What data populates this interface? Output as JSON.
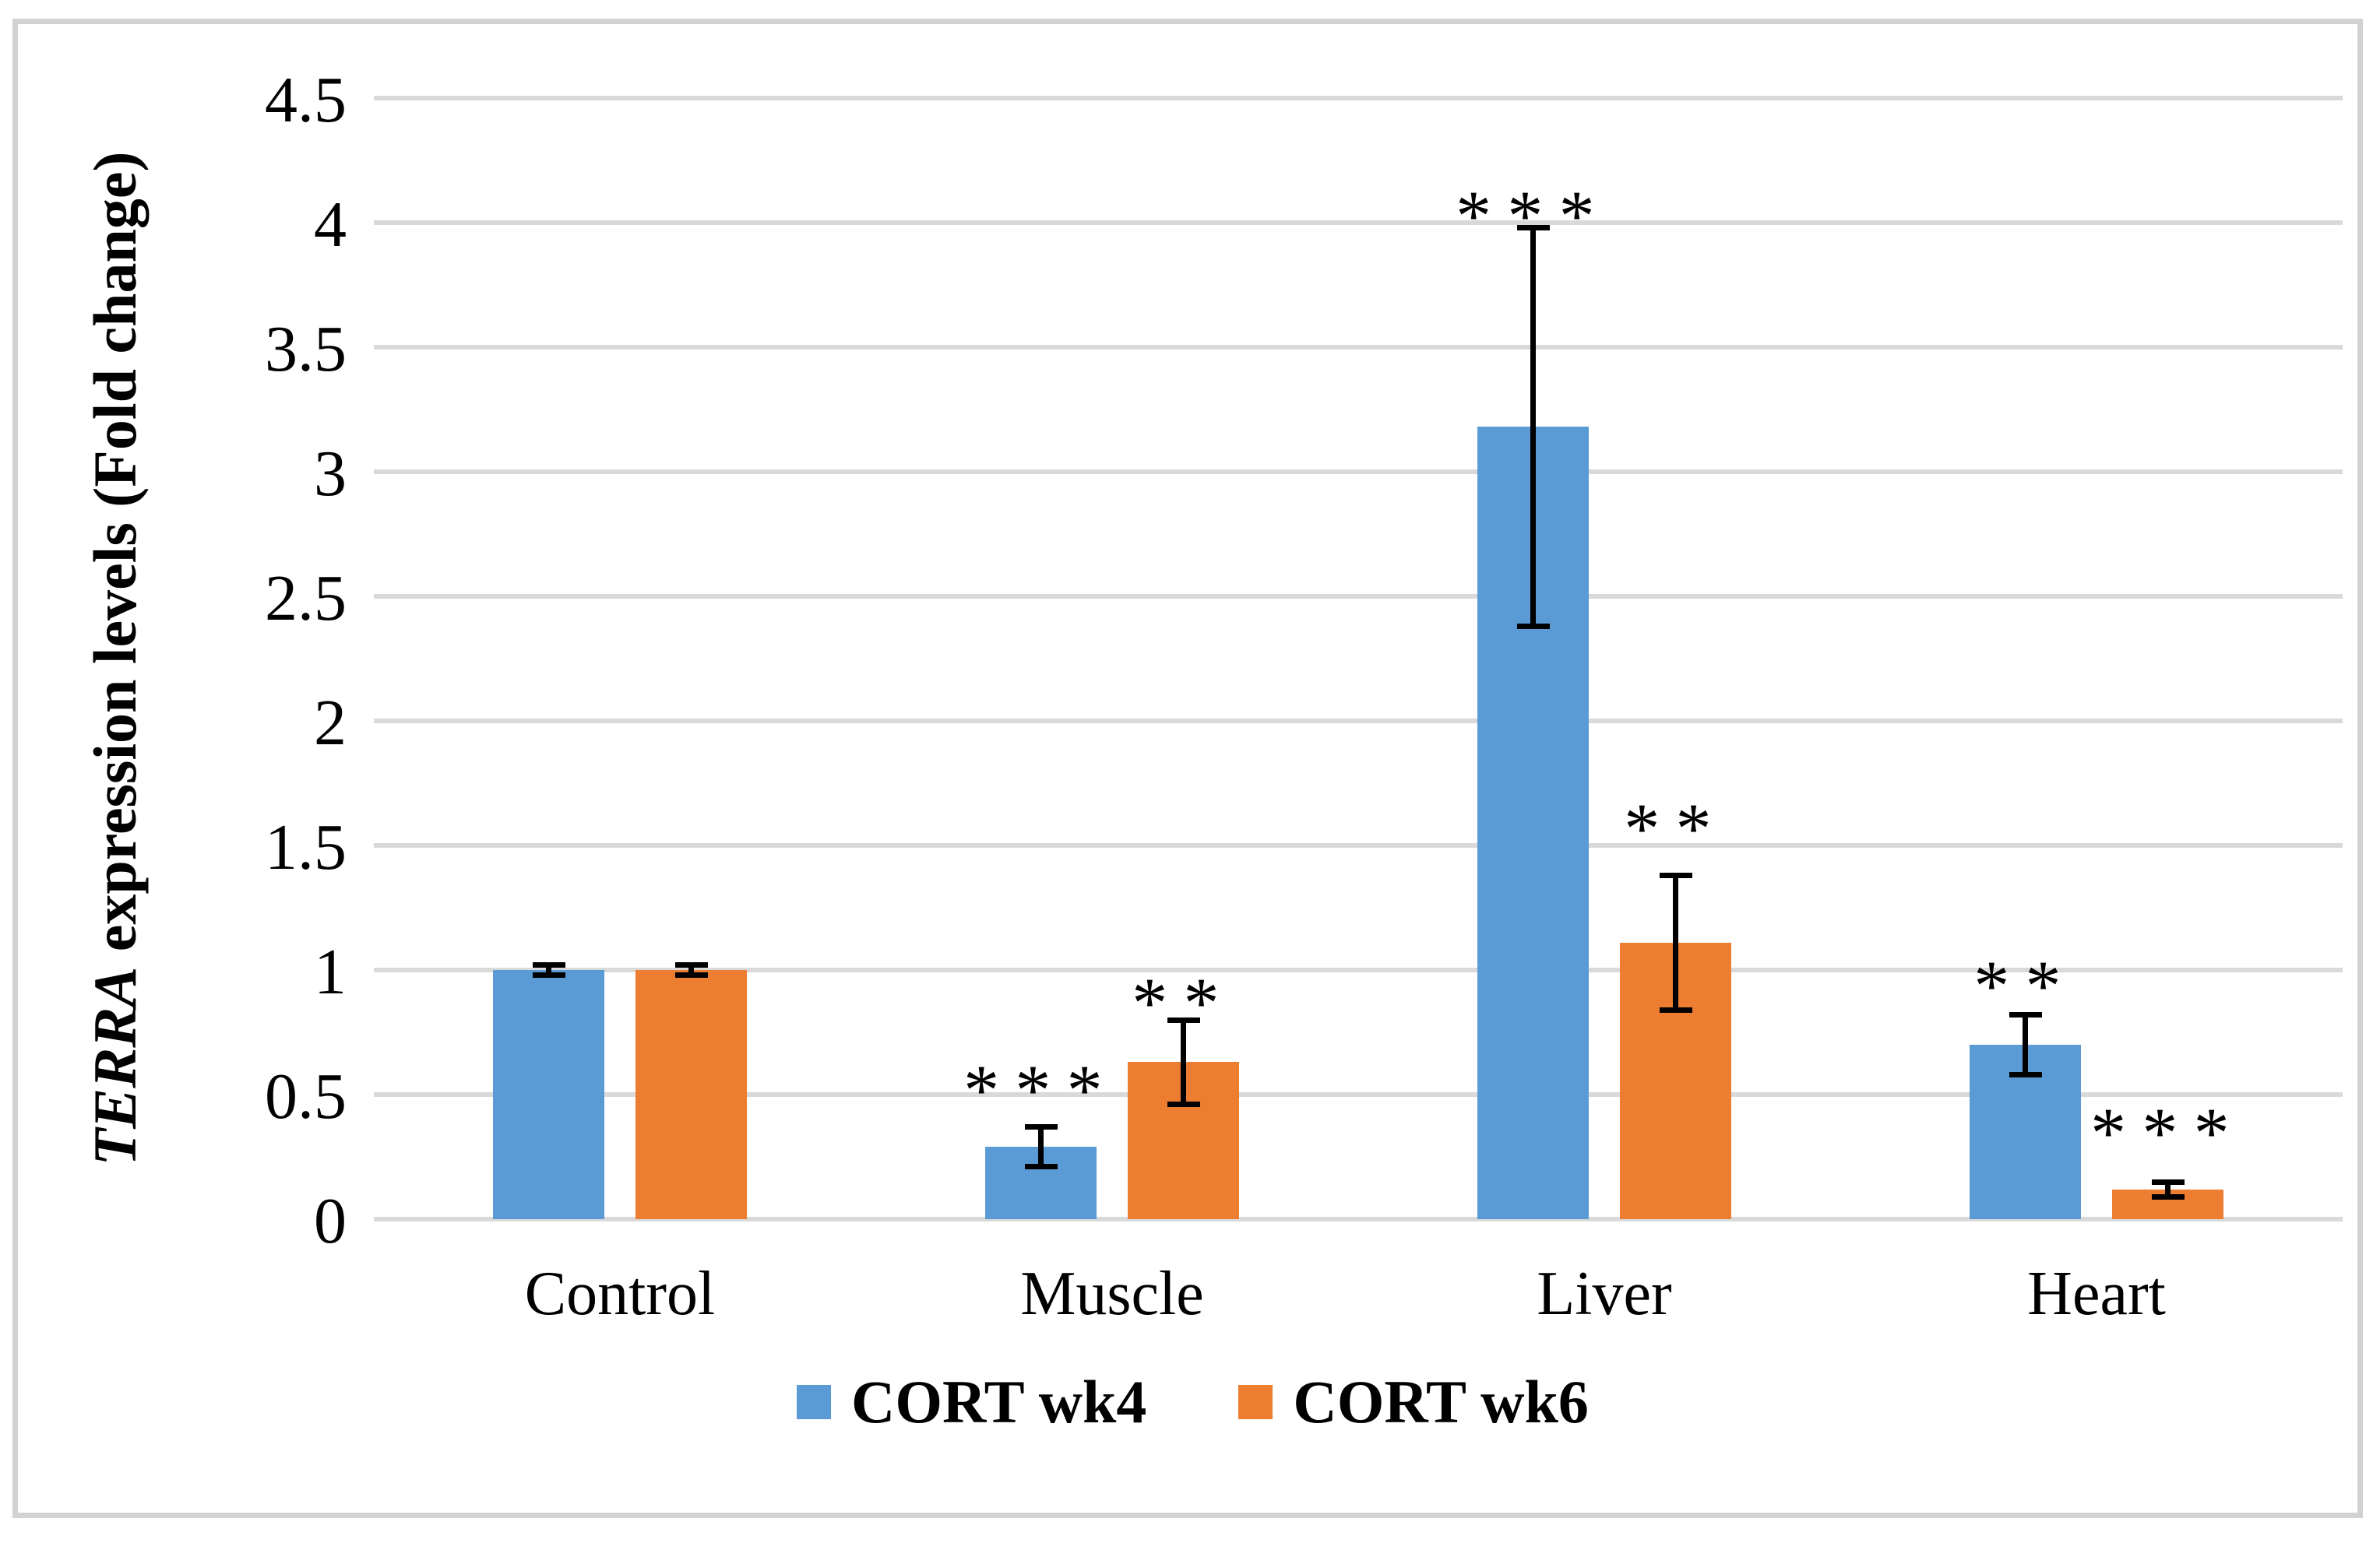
{
  "figure": {
    "background_color": "#ffffff",
    "border_color": "#d2d2d2"
  },
  "chart_data": {
    "type": "bar",
    "title": "",
    "ylabel": "TERRA expression levels (Fold change)",
    "ylabel_italic_part": "TERRA",
    "ylabel_rest_part": " expression levels (Fold change)",
    "xlabel": "",
    "categories": [
      "Control",
      "Muscle",
      "Liver",
      "Heart"
    ],
    "series": [
      {
        "name": "CORT wk4",
        "color": "#5B9BD5",
        "values": [
          1.0,
          0.29,
          3.18,
          0.7
        ],
        "errors": [
          0.02,
          0.08,
          0.8,
          0.12
        ],
        "significance": [
          "",
          "***",
          "***",
          "**"
        ],
        "significance_y": [
          null,
          0.61,
          4.12,
          1.03
        ]
      },
      {
        "name": "CORT wk6",
        "color": "#ED7D31",
        "values": [
          1.0,
          0.63,
          1.11,
          0.12
        ],
        "errors": [
          0.02,
          0.17,
          0.27,
          0.03
        ],
        "significance": [
          "",
          "**",
          "**",
          "***"
        ],
        "significance_y": [
          null,
          0.96,
          1.66,
          0.44
        ]
      }
    ],
    "y_axis": {
      "min": 0,
      "max": 4.5,
      "step": 0.5,
      "tick_labels": [
        "0",
        "0.5",
        "1",
        "1.5",
        "2",
        "2.5",
        "3",
        "3.5",
        "4",
        "4.5"
      ]
    },
    "ylim": [
      0,
      4.5
    ],
    "grid": true,
    "gridline_color": "#d9d9d9",
    "error_bar_color": "#000000",
    "legend_position": "bottom"
  }
}
